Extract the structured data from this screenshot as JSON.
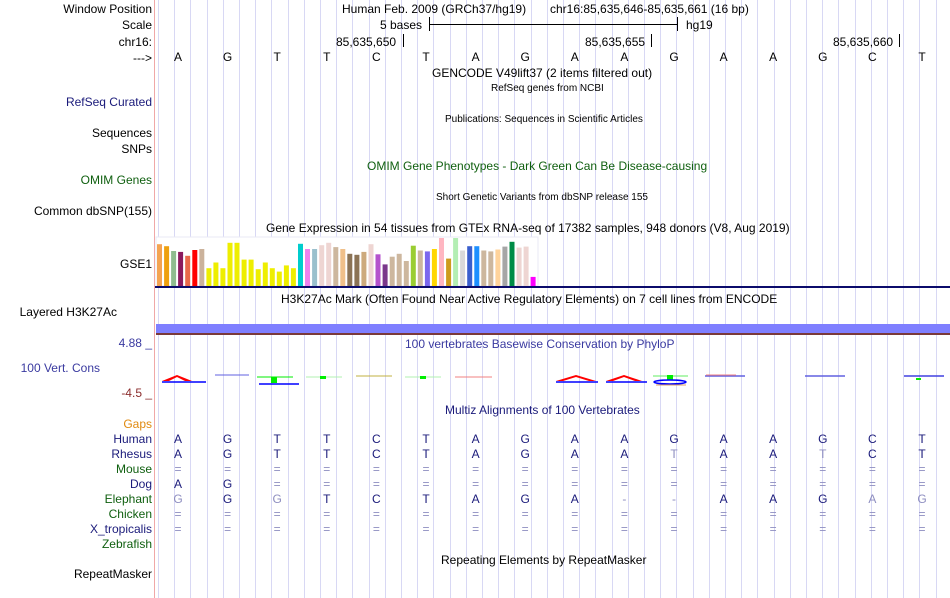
{
  "header": {
    "window_position_label": "Window Position",
    "scale_label": "Scale",
    "chrom_label": "chr16:",
    "strand_label": "--->",
    "assembly_title": "Human Feb. 2009 (GRCh37/hg19)",
    "position": "chr16:85,635,646-85,635,661 (16 bp)",
    "scale_text": "5 bases",
    "scale_db": "hg19",
    "coord_ticks": [
      "85,635,650",
      "85,635,655",
      "85,635,660"
    ]
  },
  "sequence": [
    "A",
    "G",
    "T",
    "T",
    "C",
    "T",
    "A",
    "G",
    "A",
    "A",
    "G",
    "A",
    "A",
    "G",
    "C",
    "T"
  ],
  "tracks": {
    "gencode_title": "GENCODE V49lift37 (2 items filtered out)",
    "refseq_title": "RefSeq genes from NCBI",
    "refseq_label": "RefSeq Curated",
    "publications_title": "Publications: Sequences in Scientific Articles",
    "sequences_label": "Sequences",
    "snps_label": "SNPs",
    "omim_title": "OMIM Gene Phenotypes - Dark Green Can Be Disease-causing",
    "omim_label": "OMIM Genes",
    "dbsnp_title": "Short Genetic Variants from dbSNP release 155",
    "dbsnp_label": "Common dbSNP(155)",
    "gtex_title": "Gene Expression in 54 tissues from GTEx RNA-seq of 17382 samples, 948 donors (V8, Aug 2019)",
    "gtex_label": "GSE1",
    "h3k27ac_title": "H3K27Ac Mark (Often Found Near Active Regulatory Elements) on 7 cell lines from ENCODE",
    "h3k27ac_label": "Layered H3K27Ac",
    "phylop_title": "100 vertebrates Basewise Conservation by PhyloP",
    "phylop_label": "100 Vert. Cons",
    "phylop_max": "4.88 _",
    "phylop_min": "-4.5 _",
    "multiz_title": "Multiz Alignments of 100 Vertebrates",
    "gaps_label": "Gaps",
    "repeat_title": "Repeating Elements by RepeatMasker",
    "repeat_label": "RepeatMasker"
  },
  "gtex_bars": {
    "colors": [
      "#f4a352",
      "#eea00f",
      "#8fbc8f",
      "#8b1a5e",
      "#e9694b",
      "#ff0000",
      "#cbb29b",
      "#eeee00",
      "#eeee00",
      "#eeee00",
      "#eeee00",
      "#eeee00",
      "#eeee00",
      "#eeee00",
      "#eeee00",
      "#eeee00",
      "#eeee00",
      "#eeee00",
      "#eeee00",
      "#eeee00",
      "#00cdcd",
      "#ee82ee",
      "#9ac0cd",
      "#eed5d2",
      "#eed5d2",
      "#cdb79e",
      "#f0c08a",
      "#8b7355",
      "#8b7355",
      "#cdaa7d",
      "#eed5d2",
      "#b452cd",
      "#7a378b",
      "#cdb79e",
      "#cdb79e",
      "#cdb79e",
      "#9acd32",
      "#cdb79e",
      "#7b68ee",
      "#ffd700",
      "#ffb6c1",
      "#cd9b1d",
      "#b4eeb4",
      "#d9d9d9",
      "#3a5fcd",
      "#1e90ff",
      "#cdb79e",
      "#cdb79e",
      "#ffd39b",
      "#a6a6a6",
      "#008b45",
      "#eed5d2",
      "#eed5d2",
      "#ff00ff"
    ],
    "values": [
      0.87,
      0.83,
      0.73,
      0.71,
      0.63,
      0.75,
      0.77,
      0.37,
      0.49,
      0.37,
      0.9,
      0.9,
      0.55,
      0.55,
      0.35,
      0.49,
      0.37,
      0.3,
      0.43,
      0.37,
      0.88,
      0.77,
      0.77,
      0.85,
      0.9,
      0.81,
      0.77,
      0.67,
      0.65,
      0.71,
      0.87,
      0.66,
      0.45,
      0.61,
      0.67,
      0.52,
      0.84,
      0.74,
      0.72,
      0.77,
      1.0,
      0.57,
      1.0,
      0.74,
      0.83,
      0.83,
      0.74,
      0.72,
      0.76,
      0.82,
      0.92,
      0.8,
      0.82,
      0.19
    ]
  },
  "multiz": {
    "species": [
      {
        "name": "Human",
        "color": "#1a1a7a",
        "bases": [
          "A",
          "G",
          "T",
          "T",
          "C",
          "T",
          "A",
          "G",
          "A",
          "A",
          "G",
          "A",
          "A",
          "G",
          "C",
          "T"
        ]
      },
      {
        "name": "Rhesus",
        "color": "#1a1a7a",
        "bases": [
          "A",
          "G",
          "T",
          "T",
          "C",
          "T",
          "A",
          "G",
          "A",
          "A",
          "T",
          "A",
          "A",
          "T",
          "C",
          "T"
        ]
      },
      {
        "name": "Mouse",
        "color": "#0f5f0f",
        "bases": [
          "=",
          "=",
          "=",
          "=",
          "=",
          "=",
          "=",
          "=",
          "=",
          "=",
          "=",
          "=",
          "=",
          "=",
          "=",
          "="
        ]
      },
      {
        "name": "Dog",
        "color": "#1a1a7a",
        "bases": [
          "A",
          "G",
          "=",
          "=",
          "=",
          "=",
          "=",
          "=",
          "=",
          "=",
          "=",
          "=",
          "=",
          "=",
          "=",
          "="
        ]
      },
      {
        "name": "Elephant",
        "color": "#0f5f0f",
        "bases": [
          "G",
          "G",
          "G",
          "T",
          "C",
          "T",
          "A",
          "G",
          "A",
          "-",
          "-",
          "A",
          "A",
          "G",
          "A",
          "G"
        ]
      },
      {
        "name": "Chicken",
        "color": "#0f5f0f",
        "bases": [
          "=",
          "=",
          "=",
          "=",
          "=",
          "=",
          "=",
          "=",
          "=",
          "=",
          "=",
          "=",
          "=",
          "=",
          "=",
          "="
        ]
      },
      {
        "name": "X_tropicalis",
        "color": "#1a1a7a",
        "bases": [
          "=",
          "=",
          "=",
          "=",
          "=",
          "=",
          "=",
          "=",
          "=",
          "=",
          "=",
          "=",
          "=",
          "=",
          "=",
          "="
        ]
      },
      {
        "name": "Zebrafish",
        "color": "#0f5f0f",
        "bases": [
          "",
          "",
          "",
          "",
          "",
          "",
          "",
          "",
          "",
          "",
          "",
          "",
          "",
          "",
          "",
          ""
        ]
      }
    ],
    "faded": {
      "Rhesus": [
        10,
        13
      ],
      "Elephant": [
        0,
        2,
        9,
        10,
        14,
        15
      ]
    }
  },
  "colors": {
    "grid": "#d8d8f4",
    "h3k27ac_bar": "#7f7fff",
    "navy": "#1a1a7a",
    "omim_green": "#0f5f0f",
    "gaps_orange": "#e08a10"
  }
}
